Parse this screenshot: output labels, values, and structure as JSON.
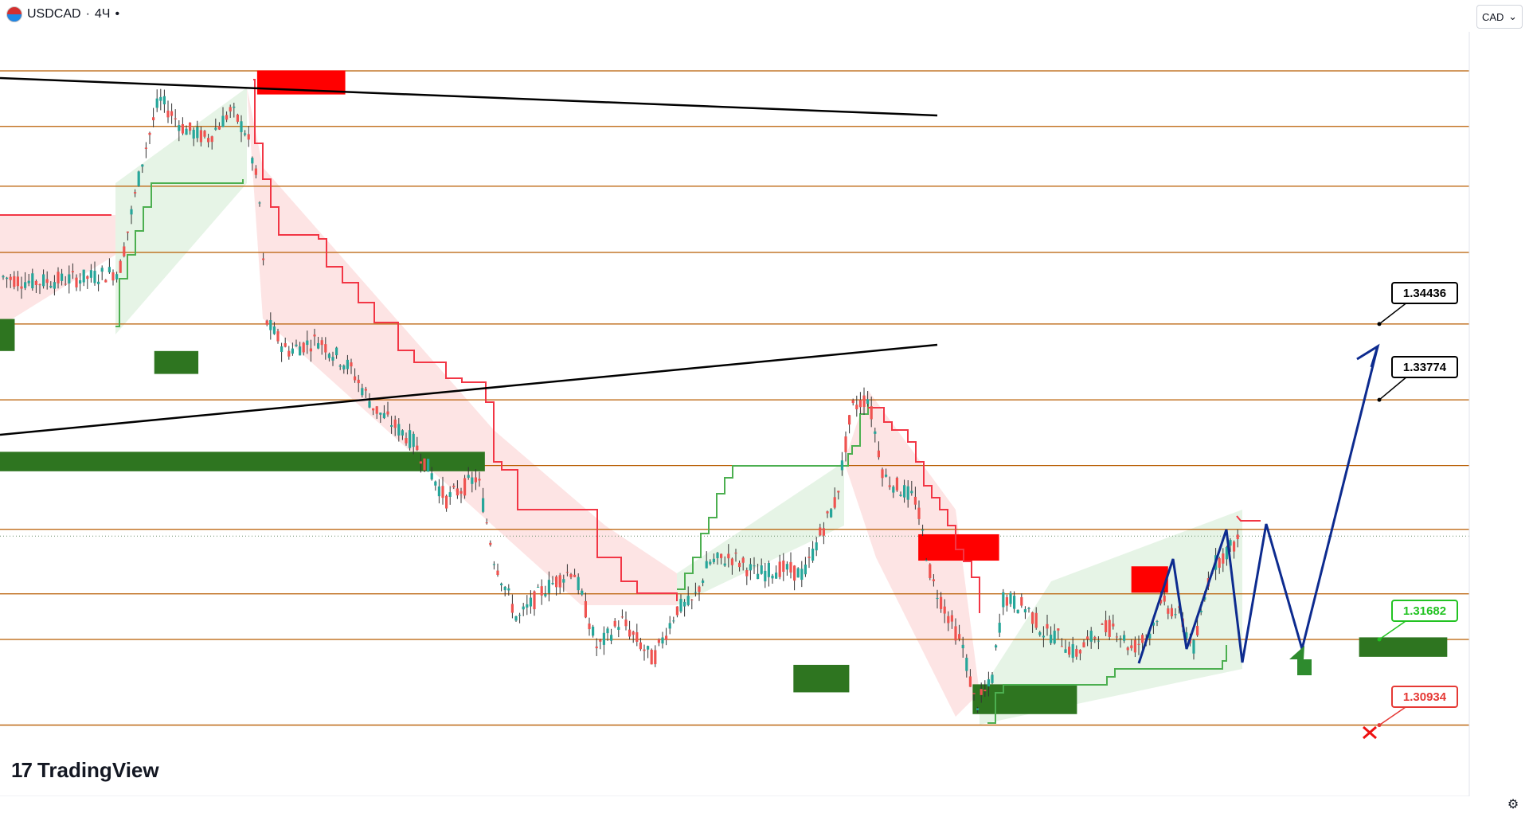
{
  "header": {
    "symbol": "USDCAD",
    "separator": "·",
    "interval": "4Ч",
    "dot": "•",
    "currency": "CAD",
    "currency_chevron": "⌄"
  },
  "branding": {
    "logo_mark": "17",
    "logo_text": "TradingView"
  },
  "colors": {
    "level_line": "#b85c00",
    "level_label_bg": "#b85c00",
    "price_label_bg": "#2e7d32",
    "supertrend_down": "#f23645",
    "supertrend_up": "#4caf50",
    "fill_down": "#fde4e4",
    "fill_up": "#e6f4e6",
    "candle_up": "#26a69a",
    "candle_down": "#ef5350",
    "zone_red": "#ff0000",
    "zone_green": "#2e7520",
    "trendline": "#000000",
    "projection": "#0d2b8f",
    "target_up_border": "#000000",
    "target_mid_border": "#22c322",
    "target_stop_border": "#e53935"
  },
  "chart_data": {
    "type": "candlestick",
    "symbol": "USDCAD",
    "interval": "4Ч",
    "ylim": [
      1.3035,
      1.369
    ],
    "y_ticks": [
      "1.30500",
      "1.31000",
      "1.31500",
      "1.32000",
      "1.32500",
      "1.33000",
      "1.33500",
      "1.34000",
      "1.34500",
      "1.35000",
      "1.35500",
      "1.36000",
      "1.36500",
      "1.37000"
    ],
    "x_ticks": [
      "22",
      "26",
      "Июн",
      "15:00",
      "12",
      "19",
      "26",
      "Июл",
      "10",
      "17",
      "24",
      "Авг",
      "7",
      "14"
    ],
    "levels": [
      {
        "value": 1.36646,
        "label": "1.36646"
      },
      {
        "value": 1.36161,
        "label": "1.36161"
      },
      {
        "value": 1.35639,
        "label": "1.35639"
      },
      {
        "value": 1.35061,
        "label": "1.35061"
      },
      {
        "value": 1.34436,
        "label": "1.34436"
      },
      {
        "value": 1.33774,
        "label": "1.33774"
      },
      {
        "value": 1.332,
        "label": "1.33200"
      },
      {
        "value": 1.32643,
        "label": "1.32643"
      },
      {
        "value": 1.3208,
        "label": "1.32080"
      },
      {
        "value": 1.31682,
        "label": "1.31682"
      },
      {
        "value": 1.30934,
        "label": "1.30934"
      }
    ],
    "last_price": {
      "value": 1.32584,
      "label": "1.32584"
    },
    "targets": [
      {
        "value": 1.34436,
        "label": "1.34436",
        "kind": "target"
      },
      {
        "value": 1.33774,
        "label": "1.33774",
        "kind": "target"
      },
      {
        "value": 1.31682,
        "label": "1.31682",
        "kind": "entry"
      },
      {
        "value": 1.30934,
        "label": "1.30934",
        "kind": "stop"
      }
    ],
    "zones": [
      {
        "color": "red",
        "x": [
          0.175,
          0.235
        ],
        "y": [
          1.3644,
          1.3665
        ]
      },
      {
        "color": "red",
        "x": [
          0.625,
          0.68
        ],
        "y": [
          1.3237,
          1.326
        ]
      },
      {
        "color": "red",
        "x": [
          0.77,
          0.795
        ],
        "y": [
          1.3209,
          1.3232
        ]
      },
      {
        "color": "green",
        "x": [
          0.0,
          0.01
        ],
        "y": [
          1.342,
          1.3448
        ]
      },
      {
        "color": "green",
        "x": [
          0.105,
          0.135
        ],
        "y": [
          1.34,
          1.342
        ]
      },
      {
        "color": "green",
        "x": [
          0.0,
          0.33
        ],
        "y": [
          1.3315,
          1.3332
        ]
      },
      {
        "color": "green",
        "x": [
          0.54,
          0.578
        ],
        "y": [
          1.3122,
          1.3146
        ]
      },
      {
        "color": "green",
        "x": [
          0.662,
          0.733
        ],
        "y": [
          1.3103,
          1.3129
        ]
      },
      {
        "color": "green",
        "x": [
          0.925,
          0.985
        ],
        "y": [
          1.3153,
          1.317
        ]
      }
    ]
  }
}
